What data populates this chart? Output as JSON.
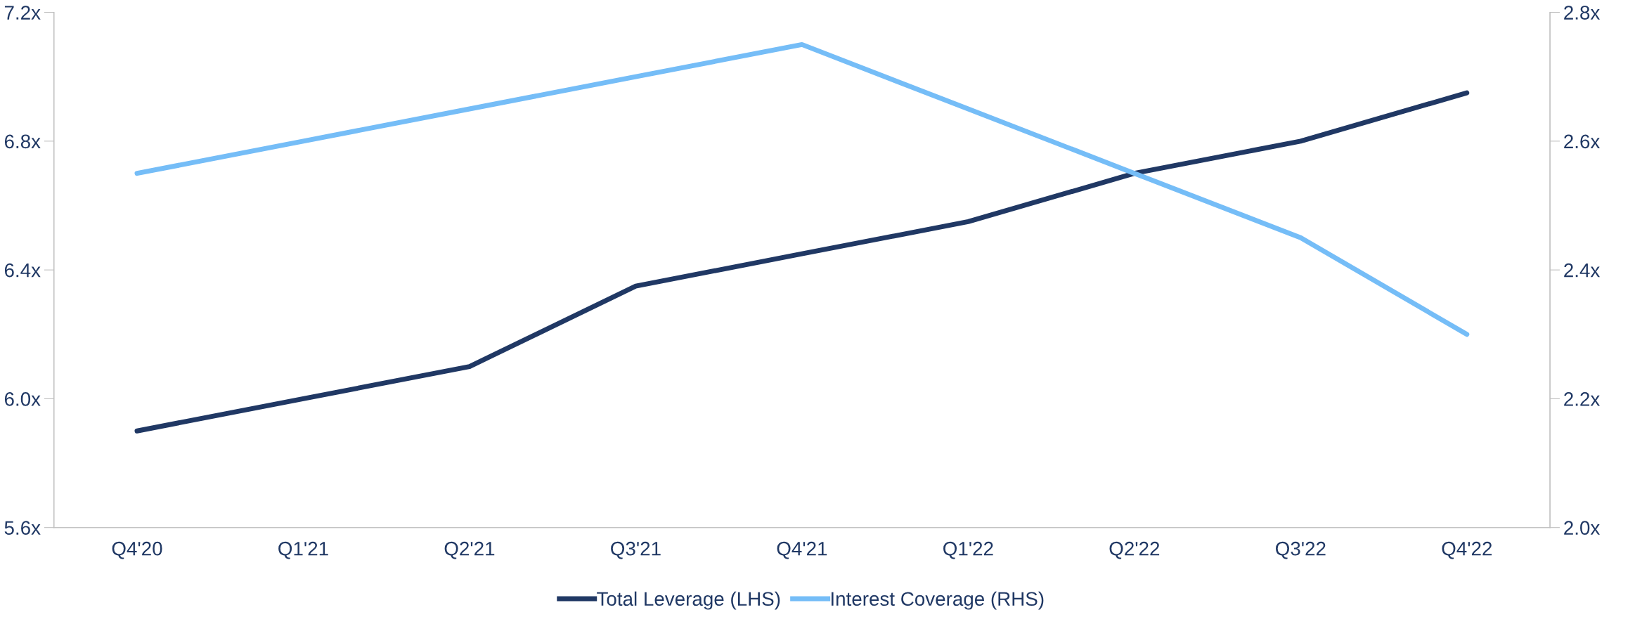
{
  "chart_data": {
    "type": "line",
    "categories": [
      "Q4'20",
      "Q1'21",
      "Q2'21",
      "Q3'21",
      "Q4'21",
      "Q1'22",
      "Q2'22",
      "Q3'22",
      "Q4'22"
    ],
    "series": [
      {
        "name": "Total Leverage (LHS)",
        "color": "#203864",
        "values": [
          5.9,
          6.0,
          6.1,
          6.35,
          6.45,
          6.55,
          6.7,
          6.8,
          6.95
        ]
      },
      {
        "name": "Interest Coverage (RHS)",
        "color": "#75bdf7",
        "axis": "y2",
        "values": [
          2.55,
          2.6,
          2.65,
          2.7,
          2.75,
          2.65,
          2.55,
          2.45,
          2.3
        ]
      }
    ],
    "ylim": [
      5.6,
      7.2
    ],
    "yticks": [
      {
        "value": 5.6,
        "label": "5.6x"
      },
      {
        "value": 6.0,
        "label": "6.0x"
      },
      {
        "value": 6.4,
        "label": "6.4x"
      },
      {
        "value": 6.8,
        "label": "6.8x"
      },
      {
        "value": 7.2,
        "label": "7.2x"
      }
    ],
    "y2lim": [
      2.0,
      2.8
    ],
    "y2ticks": [
      {
        "value": 2.0,
        "label": "2.0x"
      },
      {
        "value": 2.2,
        "label": "2.2x"
      },
      {
        "value": 2.4,
        "label": "2.4x"
      },
      {
        "value": 2.6,
        "label": "2.6x"
      },
      {
        "value": 2.8,
        "label": "2.8x"
      }
    ],
    "grid": false,
    "legend": "bottom",
    "marker": "none",
    "line_style": "solid"
  }
}
